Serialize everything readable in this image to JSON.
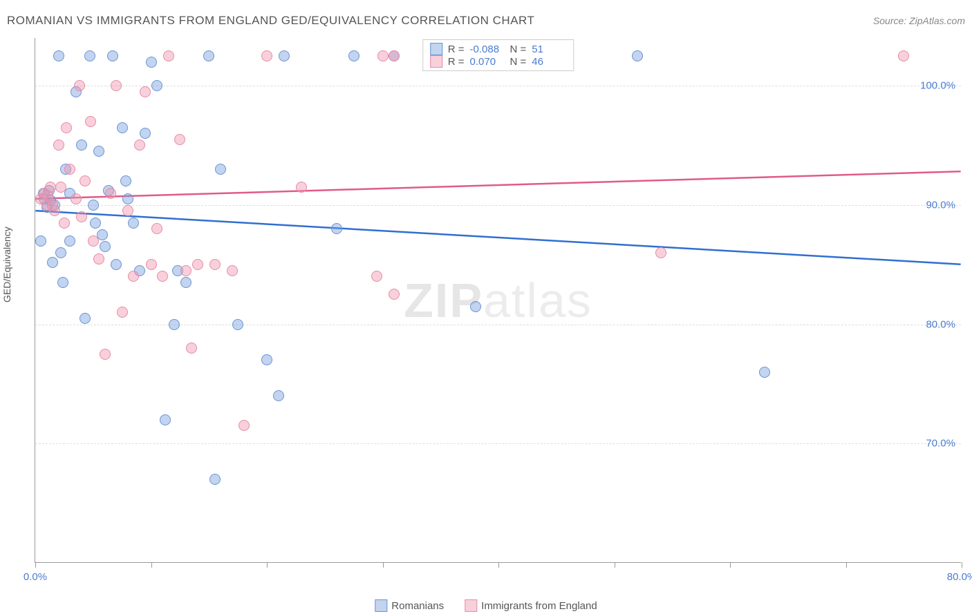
{
  "title": "ROMANIAN VS IMMIGRANTS FROM ENGLAND GED/EQUIVALENCY CORRELATION CHART",
  "source": "Source: ZipAtlas.com",
  "y_axis_label": "GED/Equivalency",
  "watermark_bold": "ZIP",
  "watermark_light": "atlas",
  "chart": {
    "type": "scatter",
    "xlim": [
      0,
      80
    ],
    "ylim": [
      60,
      104
    ],
    "x_ticks": [
      0,
      10,
      20,
      30,
      40,
      50,
      60,
      70,
      80
    ],
    "x_tick_labels": {
      "0": "0.0%",
      "80": "80.0%"
    },
    "y_ticks": [
      70,
      80,
      90,
      100
    ],
    "y_tick_labels": {
      "70": "70.0%",
      "80": "80.0%",
      "90": "90.0%",
      "100": "100.0%"
    },
    "background_color": "#ffffff",
    "grid_color": "#dddddd",
    "axis_color": "#999999",
    "label_color": "#4a7bd0",
    "point_radius": 8,
    "series": [
      {
        "name": "Romanians",
        "fill": "rgba(120,160,220,0.45)",
        "stroke": "#6a93d4",
        "trend_color": "#2f6fd0",
        "trend_y_start": 89.5,
        "trend_y_end": 85.0,
        "R_label": "R =",
        "R": "-0.088",
        "N_label": "N =",
        "N": "51",
        "points": [
          [
            0.5,
            87
          ],
          [
            0.7,
            91
          ],
          [
            0.8,
            90.5
          ],
          [
            1.0,
            89.8
          ],
          [
            1.2,
            91.2
          ],
          [
            1.3,
            90.4
          ],
          [
            1.5,
            85.2
          ],
          [
            1.7,
            90
          ],
          [
            2.0,
            102.5
          ],
          [
            2.2,
            86
          ],
          [
            2.4,
            83.5
          ],
          [
            2.6,
            93
          ],
          [
            3.0,
            91
          ],
          [
            3.0,
            87
          ],
          [
            3.5,
            99.5
          ],
          [
            4.0,
            95
          ],
          [
            4.3,
            80.5
          ],
          [
            4.7,
            102.5
          ],
          [
            5.0,
            90
          ],
          [
            5.2,
            88.5
          ],
          [
            5.5,
            94.5
          ],
          [
            5.8,
            87.5
          ],
          [
            6.0,
            86.5
          ],
          [
            6.3,
            91.2
          ],
          [
            6.7,
            102.5
          ],
          [
            7.0,
            85
          ],
          [
            7.5,
            96.5
          ],
          [
            7.8,
            92
          ],
          [
            8.0,
            90.5
          ],
          [
            8.5,
            88.5
          ],
          [
            9.0,
            84.5
          ],
          [
            9.5,
            96
          ],
          [
            10.0,
            102
          ],
          [
            10.5,
            100
          ],
          [
            11.2,
            72
          ],
          [
            12.0,
            80
          ],
          [
            12.3,
            84.5
          ],
          [
            13.0,
            83.5
          ],
          [
            15.0,
            102.5
          ],
          [
            15.5,
            67
          ],
          [
            16.0,
            93
          ],
          [
            17.5,
            80
          ],
          [
            20.0,
            77
          ],
          [
            21.0,
            74
          ],
          [
            21.5,
            102.5
          ],
          [
            26.0,
            88
          ],
          [
            27.5,
            102.5
          ],
          [
            31.0,
            102.5
          ],
          [
            38.0,
            81.5
          ],
          [
            52.0,
            102.5
          ],
          [
            63.0,
            76
          ]
        ]
      },
      {
        "name": "Immigrants from England",
        "fill": "rgba(240,150,175,0.45)",
        "stroke": "#e88aa5",
        "trend_color": "#e05a88",
        "trend_y_start": 90.5,
        "trend_y_end": 92.8,
        "R_label": "R =",
        "R": "0.070",
        "N_label": "N =",
        "N": "46",
        "points": [
          [
            0.5,
            90.5
          ],
          [
            0.8,
            91
          ],
          [
            1.0,
            90
          ],
          [
            1.1,
            90.8
          ],
          [
            1.3,
            91.5
          ],
          [
            1.5,
            90
          ],
          [
            1.7,
            89.5
          ],
          [
            2.0,
            95
          ],
          [
            2.2,
            91.5
          ],
          [
            2.5,
            88.5
          ],
          [
            2.7,
            96.5
          ],
          [
            3.0,
            93
          ],
          [
            3.5,
            90.5
          ],
          [
            3.8,
            100
          ],
          [
            4.0,
            89
          ],
          [
            4.3,
            92
          ],
          [
            4.8,
            97
          ],
          [
            5.0,
            87
          ],
          [
            5.5,
            85.5
          ],
          [
            6.0,
            77.5
          ],
          [
            6.5,
            91
          ],
          [
            7.0,
            100
          ],
          [
            7.5,
            81
          ],
          [
            8.0,
            89.5
          ],
          [
            8.5,
            84
          ],
          [
            9.0,
            95
          ],
          [
            9.5,
            99.5
          ],
          [
            10.0,
            85
          ],
          [
            10.5,
            88
          ],
          [
            11.0,
            84
          ],
          [
            11.5,
            102.5
          ],
          [
            12.5,
            95.5
          ],
          [
            13.0,
            84.5
          ],
          [
            13.5,
            78
          ],
          [
            14.0,
            85
          ],
          [
            15.5,
            85
          ],
          [
            17.0,
            84.5
          ],
          [
            18.0,
            71.5
          ],
          [
            20.0,
            102.5
          ],
          [
            23.0,
            91.5
          ],
          [
            29.5,
            84
          ],
          [
            30.0,
            102.5
          ],
          [
            31.0,
            82.5
          ],
          [
            31.0,
            102.5
          ],
          [
            54.0,
            86
          ],
          [
            75.0,
            102.5
          ]
        ]
      }
    ]
  },
  "legend": {
    "series1": "Romanians",
    "series2": "Immigrants from England"
  }
}
